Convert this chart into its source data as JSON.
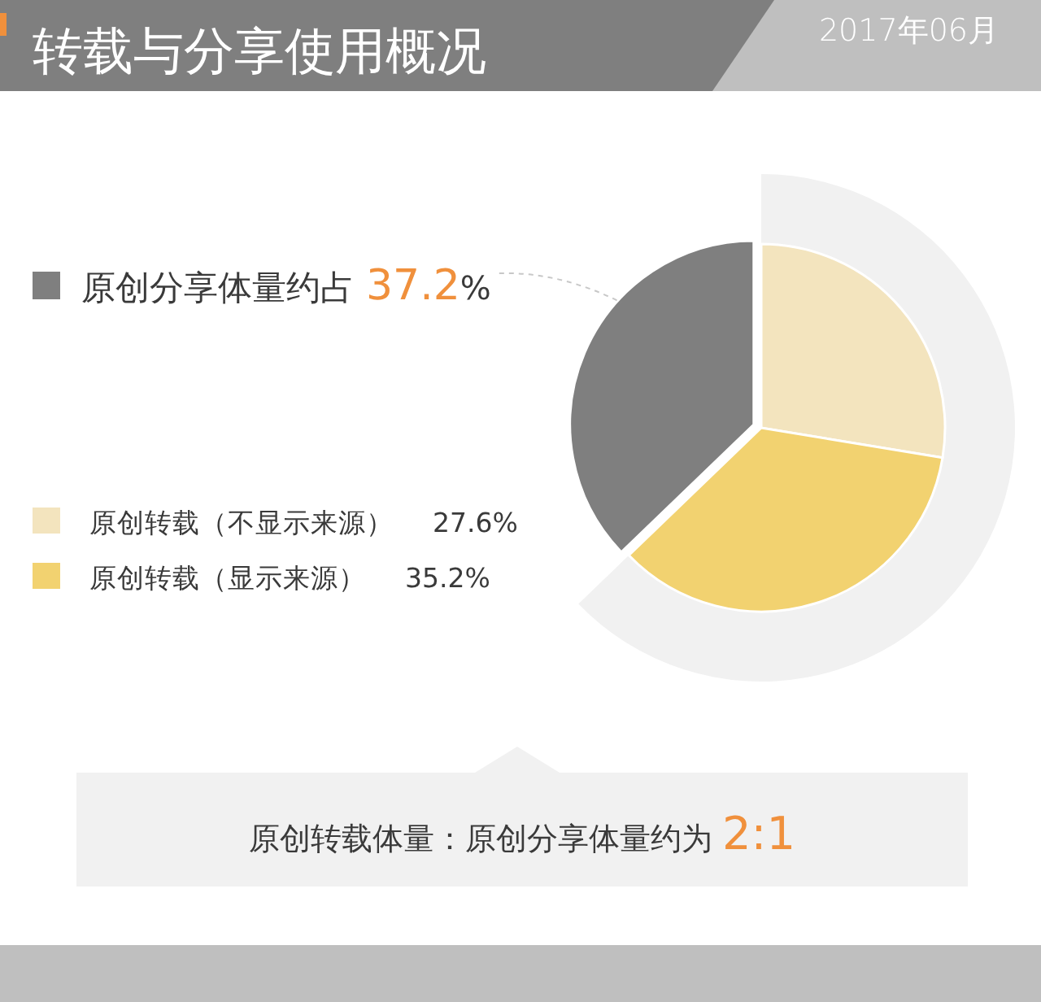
{
  "chart_data": {
    "type": "pie",
    "title": "转载与分享使用概况",
    "subtitle": "2017年06月",
    "categories": [
      "原创分享体量约占",
      "原创转载（不显示来源）",
      "原创转载（显示来源）"
    ],
    "values": [
      37.2,
      27.6,
      35.2
    ],
    "colors": [
      "#7f7f7f",
      "#f3e4be",
      "#f2d270"
    ],
    "value_labels": [
      "37.2%",
      "27.6%",
      "35.2%"
    ],
    "legend": "left",
    "annotations": [
      "原创转载体量：原创分享体量约为 2:1"
    ]
  }
}
